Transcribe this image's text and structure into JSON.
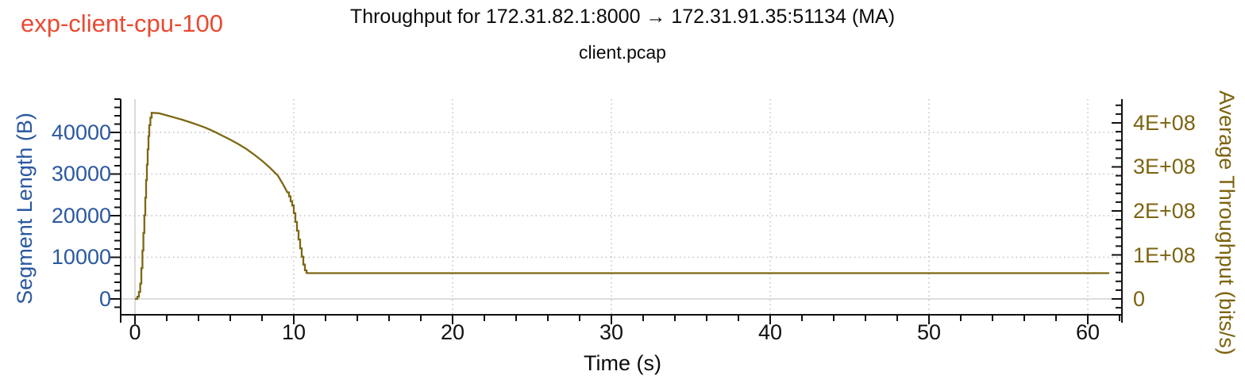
{
  "annotation": {
    "label": "exp-client-cpu-100"
  },
  "colors": {
    "annotation": "#e94a32",
    "left_axis": "#2a58a0",
    "right_axis": "#7c6410",
    "curve": "#7d6714",
    "grid_dotted": "#bfbfbf",
    "grid_zero": "#d2d2d2",
    "axis": "#111111",
    "x_labels": "#111111"
  },
  "chart_data": {
    "type": "line",
    "title": "Throughput for 172.31.82.1:8000 → 172.31.91.35:51134 (MA)",
    "subtitle": "client.pcap",
    "xlabel": "Time (s)",
    "ylabel_left": "Segment Length (B)",
    "ylabel_right": "Average Throughput (bits/s)",
    "grid": "dotted horizontal at left-axis majors and vertical at x majors; solid light lines at zero",
    "legend": "none",
    "xlim": [
      -0.9,
      62.15
    ],
    "ylim_left": [
      -3810,
      48000
    ],
    "ylim_right": [
      -36000000,
      454000000
    ],
    "x_ticks": {
      "major": [
        0,
        10,
        20,
        30,
        40,
        50,
        60
      ],
      "labels": [
        "0",
        "10",
        "20",
        "30",
        "40",
        "50",
        "60"
      ],
      "minor_step": 2
    },
    "y_left_ticks": {
      "major": [
        0,
        10000,
        20000,
        30000,
        40000
      ],
      "labels": [
        "0",
        "10000",
        "20000",
        "30000",
        "40000"
      ],
      "minor_step": 2000
    },
    "y_right_ticks": {
      "major": [
        0,
        100000000,
        200000000,
        300000000,
        400000000
      ],
      "labels": [
        "0",
        "1E+08",
        "2E+08",
        "3E+08",
        "4E+08"
      ],
      "minor_step": 20000000
    },
    "series": [
      {
        "name": "Average Throughput (MA)",
        "axis": "right",
        "color": "#7d6714",
        "points": [
          [
            0,
            0
          ],
          [
            0.15,
            0
          ],
          [
            0.15,
            5000000
          ],
          [
            0.25,
            5000000
          ],
          [
            0.25,
            16000000
          ],
          [
            0.33,
            16000000
          ],
          [
            0.33,
            35000000
          ],
          [
            0.4,
            35000000
          ],
          [
            0.4,
            70000000
          ],
          [
            0.47,
            70000000
          ],
          [
            0.47,
            110000000
          ],
          [
            0.53,
            110000000
          ],
          [
            0.53,
            150000000
          ],
          [
            0.59,
            150000000
          ],
          [
            0.59,
            190000000
          ],
          [
            0.65,
            190000000
          ],
          [
            0.65,
            230000000
          ],
          [
            0.7,
            230000000
          ],
          [
            0.7,
            270000000
          ],
          [
            0.75,
            270000000
          ],
          [
            0.75,
            305000000
          ],
          [
            0.8,
            305000000
          ],
          [
            0.8,
            340000000
          ],
          [
            0.85,
            340000000
          ],
          [
            0.85,
            370000000
          ],
          [
            0.9,
            370000000
          ],
          [
            0.9,
            395000000
          ],
          [
            0.97,
            395000000
          ],
          [
            0.97,
            412000000
          ],
          [
            1.05,
            412000000
          ],
          [
            1.05,
            423000000
          ],
          [
            1.5,
            422000000
          ],
          [
            2,
            417000000
          ],
          [
            2.5,
            412000000
          ],
          [
            3,
            407000000
          ],
          [
            3.5,
            401000000
          ],
          [
            4,
            395000000
          ],
          [
            4.5,
            388000000
          ],
          [
            5,
            380000000
          ],
          [
            5.5,
            371000000
          ],
          [
            6,
            362000000
          ],
          [
            6.5,
            352000000
          ],
          [
            7,
            341000000
          ],
          [
            7.5,
            328000000
          ],
          [
            8,
            314000000
          ],
          [
            8.5,
            298000000
          ],
          [
            9,
            280000000
          ],
          [
            9.3,
            262000000
          ],
          [
            9.6,
            242000000
          ],
          [
            9.7,
            242000000
          ],
          [
            9.7,
            233000000
          ],
          [
            9.8,
            233000000
          ],
          [
            9.8,
            222000000
          ],
          [
            9.9,
            222000000
          ],
          [
            9.9,
            212000000
          ],
          [
            10,
            212000000
          ],
          [
            10,
            195000000
          ],
          [
            10.1,
            195000000
          ],
          [
            10.1,
            175000000
          ],
          [
            10.2,
            175000000
          ],
          [
            10.2,
            155000000
          ],
          [
            10.3,
            155000000
          ],
          [
            10.3,
            135000000
          ],
          [
            10.4,
            135000000
          ],
          [
            10.4,
            115000000
          ],
          [
            10.5,
            115000000
          ],
          [
            10.5,
            96000000
          ],
          [
            10.6,
            96000000
          ],
          [
            10.6,
            78000000
          ],
          [
            10.7,
            78000000
          ],
          [
            10.7,
            65000000
          ],
          [
            10.8,
            65000000
          ],
          [
            10.8,
            59000000
          ],
          [
            11,
            58600000
          ],
          [
            61.35,
            58600000
          ]
        ]
      }
    ]
  }
}
